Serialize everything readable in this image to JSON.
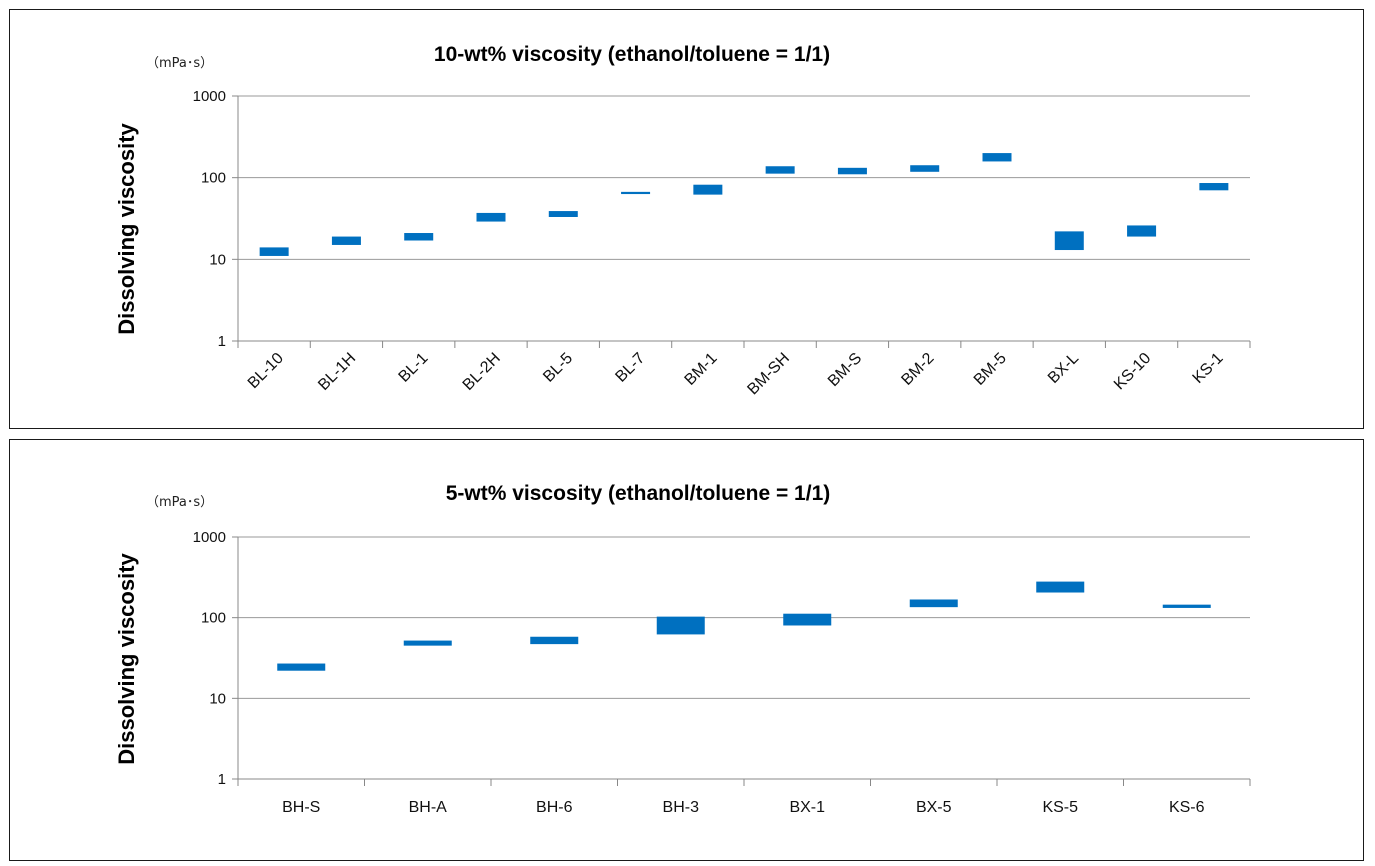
{
  "chart_data": [
    {
      "type": "bar",
      "subtype": "floating-range",
      "title": "10-wt% viscosity (ethanol/toluene = 1/1)",
      "ylabel": "Dissolving viscosity",
      "unit_label": "（mPa･s）",
      "xlabel": "",
      "yscale": "log",
      "ylim": [
        1,
        1000
      ],
      "yticks": [
        "1",
        "10",
        "100",
        "1000"
      ],
      "ytick_values": [
        1,
        10,
        100,
        1000
      ],
      "grid": true,
      "xtick_rotation": "rotated",
      "color": "#0070C0",
      "categories": [
        "BL-10",
        "BL-1H",
        "BL-1",
        "BL-2H",
        "BL-5",
        "BL-7",
        "BM-1",
        "BM-SH",
        "BM-S",
        "BM-2",
        "BM-5",
        "BX-L",
        "KS-10",
        "KS-1"
      ],
      "ranges": [
        [
          11,
          14
        ],
        [
          15,
          19
        ],
        [
          17,
          21
        ],
        [
          29,
          37
        ],
        [
          33,
          39
        ],
        [
          63,
          67
        ],
        [
          62,
          82
        ],
        [
          112,
          138
        ],
        [
          110,
          132
        ],
        [
          118,
          142
        ],
        [
          158,
          200
        ],
        [
          13,
          22
        ],
        [
          19,
          26
        ],
        [
          70,
          86
        ]
      ]
    },
    {
      "type": "bar",
      "subtype": "floating-range",
      "title": "5-wt% viscosity (ethanol/toluene = 1/1)",
      "ylabel": "Dissolving viscosity",
      "unit_label": "（mPa･s）",
      "xlabel": "",
      "yscale": "log",
      "ylim": [
        1,
        1000
      ],
      "yticks": [
        "1",
        "10",
        "100",
        "1000"
      ],
      "ytick_values": [
        1,
        10,
        100,
        1000
      ],
      "grid": true,
      "xtick_rotation": "horizontal",
      "color": "#0070C0",
      "categories": [
        "BH-S",
        "BH-A",
        "BH-6",
        "BH-3",
        "BX-1",
        "BX-5",
        "KS-5",
        "KS-6"
      ],
      "ranges": [
        [
          22,
          27
        ],
        [
          45,
          52
        ],
        [
          47,
          58
        ],
        [
          62,
          103
        ],
        [
          80,
          112
        ],
        [
          135,
          168
        ],
        [
          205,
          280
        ],
        [
          132,
          145
        ]
      ]
    }
  ]
}
